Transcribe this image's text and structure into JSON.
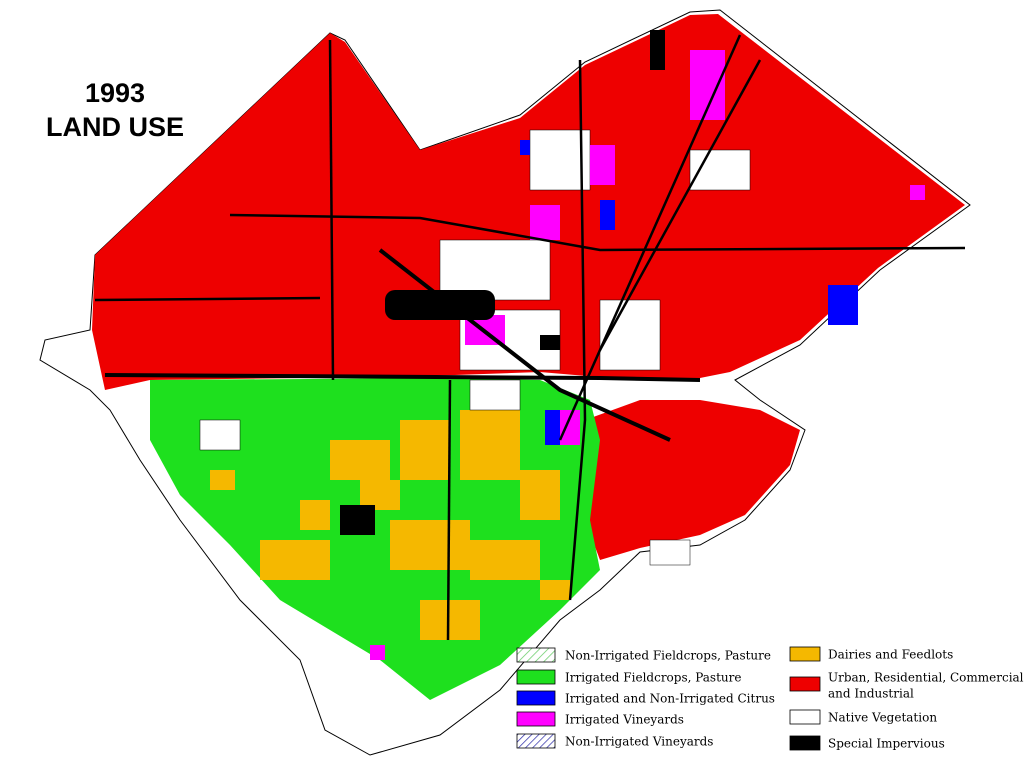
{
  "title": {
    "year": "1993",
    "subject": "LAND USE"
  },
  "legend": {
    "items": [
      {
        "lines": [
          "Non-Irrigated Fieldcrops, Pasture"
        ]
      },
      {
        "lines": [
          "Irrigated Fieldcrops, Pasture"
        ]
      },
      {
        "lines": [
          "Irrigated and Non-Irrigated Citrus"
        ]
      },
      {
        "lines": [
          "Irrigated Vineyards"
        ]
      },
      {
        "lines": [
          "Non-Irrigated Vineyards"
        ]
      },
      {
        "lines": [
          "Dairies and Feedlots"
        ]
      },
      {
        "lines": [
          "Urban, Residential, Commercial,",
          "and Industrial"
        ]
      },
      {
        "lines": [
          "Native Vegetation"
        ]
      },
      {
        "lines": [
          "Special Impervious"
        ]
      }
    ]
  }
}
